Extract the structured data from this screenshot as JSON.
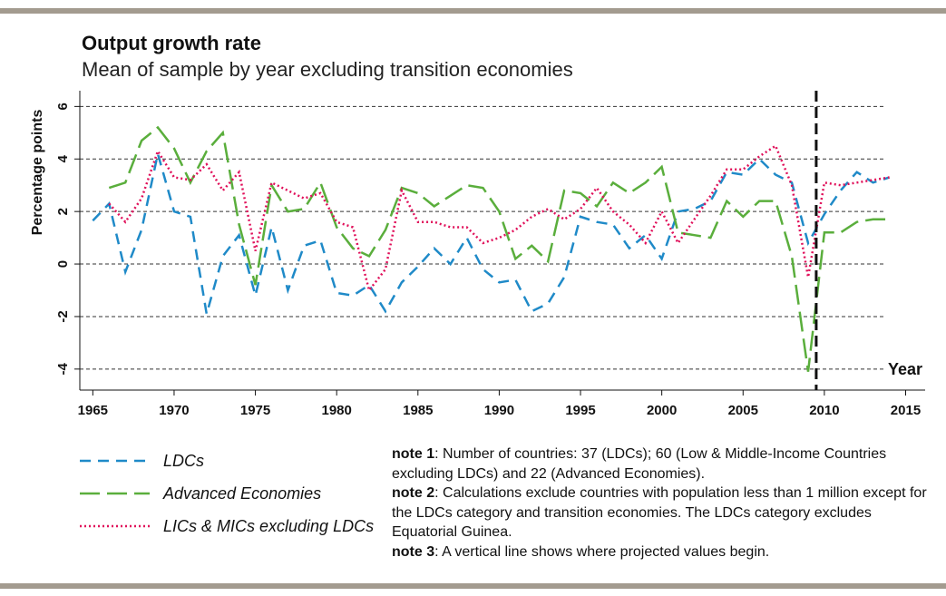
{
  "chart_data": {
    "type": "line",
    "title": "Output growth rate",
    "subtitle": "Mean of sample by year excluding transition economies",
    "x_label": "Year",
    "y_label": "Percentage points",
    "x": [
      1965,
      1966,
      1967,
      1968,
      1969,
      1970,
      1971,
      1972,
      1973,
      1974,
      1975,
      1976,
      1977,
      1978,
      1979,
      1980,
      1981,
      1982,
      1983,
      1984,
      1985,
      1986,
      1987,
      1988,
      1989,
      1990,
      1991,
      1992,
      1993,
      1994,
      1995,
      1996,
      1997,
      1998,
      1999,
      2000,
      2001,
      2002,
      2003,
      2004,
      2005,
      2006,
      2007,
      2008,
      2009,
      2010,
      2011,
      2012,
      2013,
      2014
    ],
    "series": [
      {
        "name": "LDCs",
        "color": "#1f8ac8",
        "dash": "12,8",
        "values": [
          1.65,
          2.3,
          -0.3,
          1.3,
          4.2,
          2.0,
          1.8,
          -1.9,
          0.3,
          1.1,
          -1.2,
          1.4,
          -1.0,
          0.7,
          0.9,
          -1.1,
          -1.2,
          -0.8,
          -1.8,
          -0.7,
          -0.1,
          0.6,
          0.0,
          1.0,
          -0.2,
          -0.7,
          -0.6,
          -1.8,
          -1.5,
          -0.5,
          1.8,
          1.6,
          1.5,
          0.6,
          1.1,
          0.2,
          2.0,
          2.1,
          2.4,
          3.5,
          3.4,
          4.0,
          3.4,
          3.1,
          0.8,
          1.9,
          2.8,
          3.5,
          3.1,
          3.3
        ]
      },
      {
        "name": "Advanced Economies",
        "color": "#5aae3c",
        "dash": "22,8",
        "values": [
          null,
          2.9,
          3.1,
          4.7,
          5.2,
          4.4,
          3.1,
          4.3,
          5.0,
          1.5,
          -0.8,
          3.0,
          2.0,
          2.1,
          3.1,
          1.4,
          0.6,
          0.3,
          1.3,
          2.9,
          2.7,
          2.2,
          2.6,
          3.0,
          2.9,
          2.0,
          0.2,
          0.7,
          0.1,
          2.8,
          2.7,
          2.2,
          3.1,
          2.7,
          3.1,
          3.7,
          1.2,
          1.1,
          1.0,
          2.4,
          1.8,
          2.4,
          2.4,
          0.3,
          -4.1,
          1.2,
          1.2,
          1.6,
          1.7,
          1.7
        ]
      },
      {
        "name": "LICs & MICs excluding LDCs",
        "color": "#e0105a",
        "dash": "2,3",
        "values": [
          null,
          2.3,
          1.6,
          2.5,
          4.3,
          3.3,
          3.2,
          3.8,
          2.8,
          3.5,
          0.5,
          3.1,
          2.8,
          2.5,
          2.7,
          1.6,
          1.4,
          -1.0,
          -0.2,
          2.8,
          1.6,
          1.6,
          1.4,
          1.4,
          0.8,
          1.0,
          1.3,
          1.8,
          2.1,
          1.7,
          2.1,
          2.9,
          2.0,
          1.5,
          0.8,
          2.0,
          0.8,
          1.7,
          2.6,
          3.6,
          3.6,
          4.1,
          4.5,
          3.0,
          -0.5,
          3.1,
          3.0,
          3.1,
          3.2,
          3.3
        ]
      }
    ],
    "xlim": [
      1964.2,
      2016.2
    ],
    "xticks": [
      1965,
      1970,
      1975,
      1980,
      1985,
      1990,
      1995,
      2000,
      2005,
      2010,
      2015
    ],
    "ylim": [
      -4.8,
      6.6
    ],
    "yticks": [
      -4,
      -2,
      0,
      2,
      4,
      6
    ],
    "grid": true,
    "projection_start": 2009.5,
    "legend": "bottom-left",
    "notes": [
      {
        "label": "note 1",
        "text": ": Number of countries: 37 (LDCs); 60 (Low & Middle-Income Countries excluding LDCs) and 22 (Advanced Economies)."
      },
      {
        "label": "note 2",
        "text": ": Calculations exclude countries with population less than 1 million except for the LDCs category and transition economies. The LDCs category excludes Equatorial Guinea."
      },
      {
        "label": "note 3",
        "text": ": A vertical line shows where projected values begin."
      }
    ]
  }
}
